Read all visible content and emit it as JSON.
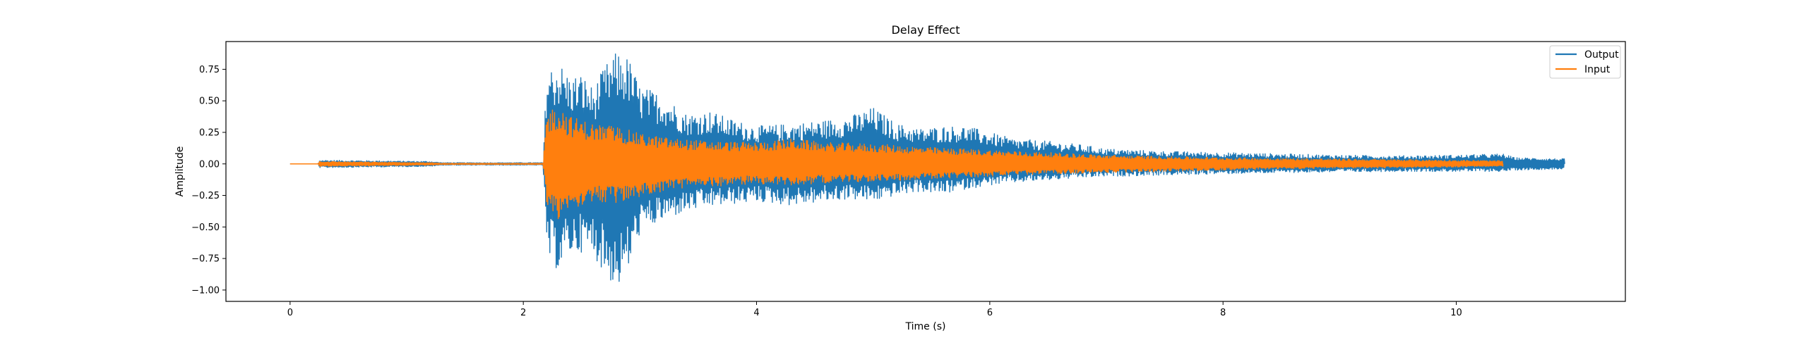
{
  "chart_data": {
    "type": "line",
    "title": "Delay Effect",
    "xlabel": "Time (s)",
    "ylabel": "Amplitude",
    "xlim": [
      -0.55,
      11.45
    ],
    "ylim": [
      -1.09,
      0.97
    ],
    "xticks": [
      0,
      2,
      4,
      6,
      8,
      10
    ],
    "xtick_labels": [
      "0",
      "2",
      "4",
      "6",
      "8",
      "10"
    ],
    "yticks": [
      0.75,
      0.5,
      0.25,
      0.0,
      -0.25,
      -0.5,
      -0.75,
      -1.0
    ],
    "ytick_labels": [
      "0.75",
      "0.50",
      "0.25",
      "0.00",
      "−0.25",
      "−0.50",
      "−0.75",
      "−1.00"
    ],
    "grid": false,
    "legend_position": "top-right",
    "series": [
      {
        "name": "Output",
        "color": "#1f77b4",
        "envelope": {
          "t": [
            0,
            0.24,
            0.25,
            1.2,
            1.3,
            2.17,
            2.2,
            2.3,
            2.4,
            2.5,
            2.6,
            2.7,
            2.8,
            2.9,
            3.0,
            3.2,
            3.4,
            3.6,
            3.8,
            4.0,
            4.3,
            4.6,
            4.8,
            5.0,
            5.2,
            5.4,
            5.6,
            5.8,
            6.0,
            6.2,
            6.5,
            6.8,
            7.0,
            7.5,
            8.0,
            8.5,
            9.0,
            9.5,
            10.0,
            10.4,
            10.5,
            10.93
          ],
          "max": [
            0.0,
            0.0,
            0.03,
            0.02,
            0.01,
            0.01,
            0.75,
            0.82,
            0.7,
            0.72,
            0.6,
            0.78,
            0.89,
            0.85,
            0.62,
            0.55,
            0.4,
            0.42,
            0.35,
            0.3,
            0.32,
            0.35,
            0.38,
            0.45,
            0.32,
            0.28,
            0.3,
            0.3,
            0.25,
            0.2,
            0.18,
            0.15,
            0.12,
            0.1,
            0.09,
            0.08,
            0.07,
            0.065,
            0.07,
            0.08,
            0.05,
            0.04
          ],
          "min": [
            0.0,
            0.0,
            -0.03,
            -0.02,
            -0.01,
            -0.01,
            -0.75,
            -0.85,
            -0.72,
            -0.7,
            -0.72,
            -0.88,
            -1.0,
            -0.85,
            -0.55,
            -0.45,
            -0.38,
            -0.34,
            -0.32,
            -0.3,
            -0.33,
            -0.3,
            -0.28,
            -0.3,
            -0.25,
            -0.22,
            -0.24,
            -0.2,
            -0.17,
            -0.15,
            -0.13,
            -0.11,
            -0.1,
            -0.09,
            -0.08,
            -0.07,
            -0.065,
            -0.06,
            -0.06,
            -0.06,
            -0.05,
            -0.04
          ]
        }
      },
      {
        "name": "Input",
        "color": "#ff7f0e",
        "envelope": {
          "t": [
            0,
            0.24,
            0.25,
            1.2,
            1.3,
            2.17,
            2.2,
            2.3,
            2.4,
            2.6,
            2.8,
            3.0,
            3.3,
            3.6,
            4.0,
            4.3,
            4.6,
            5.0,
            5.5,
            6.0,
            6.5,
            7.0,
            7.5,
            8.0,
            8.5,
            9.0,
            9.5,
            10.0,
            10.4
          ],
          "max": [
            0.0,
            0.0,
            0.02,
            0.01,
            0.005,
            0.005,
            0.42,
            0.48,
            0.38,
            0.32,
            0.3,
            0.24,
            0.2,
            0.18,
            0.17,
            0.2,
            0.17,
            0.16,
            0.13,
            0.11,
            0.09,
            0.07,
            0.06,
            0.05,
            0.045,
            0.04,
            0.035,
            0.03,
            0.025
          ],
          "min": [
            0.0,
            0.0,
            -0.02,
            -0.01,
            -0.005,
            -0.005,
            -0.35,
            -0.44,
            -0.36,
            -0.3,
            -0.32,
            -0.26,
            -0.2,
            -0.18,
            -0.16,
            -0.17,
            -0.15,
            -0.14,
            -0.12,
            -0.1,
            -0.08,
            -0.07,
            -0.06,
            -0.05,
            -0.04,
            -0.035,
            -0.03,
            -0.025,
            -0.02
          ]
        }
      }
    ]
  }
}
